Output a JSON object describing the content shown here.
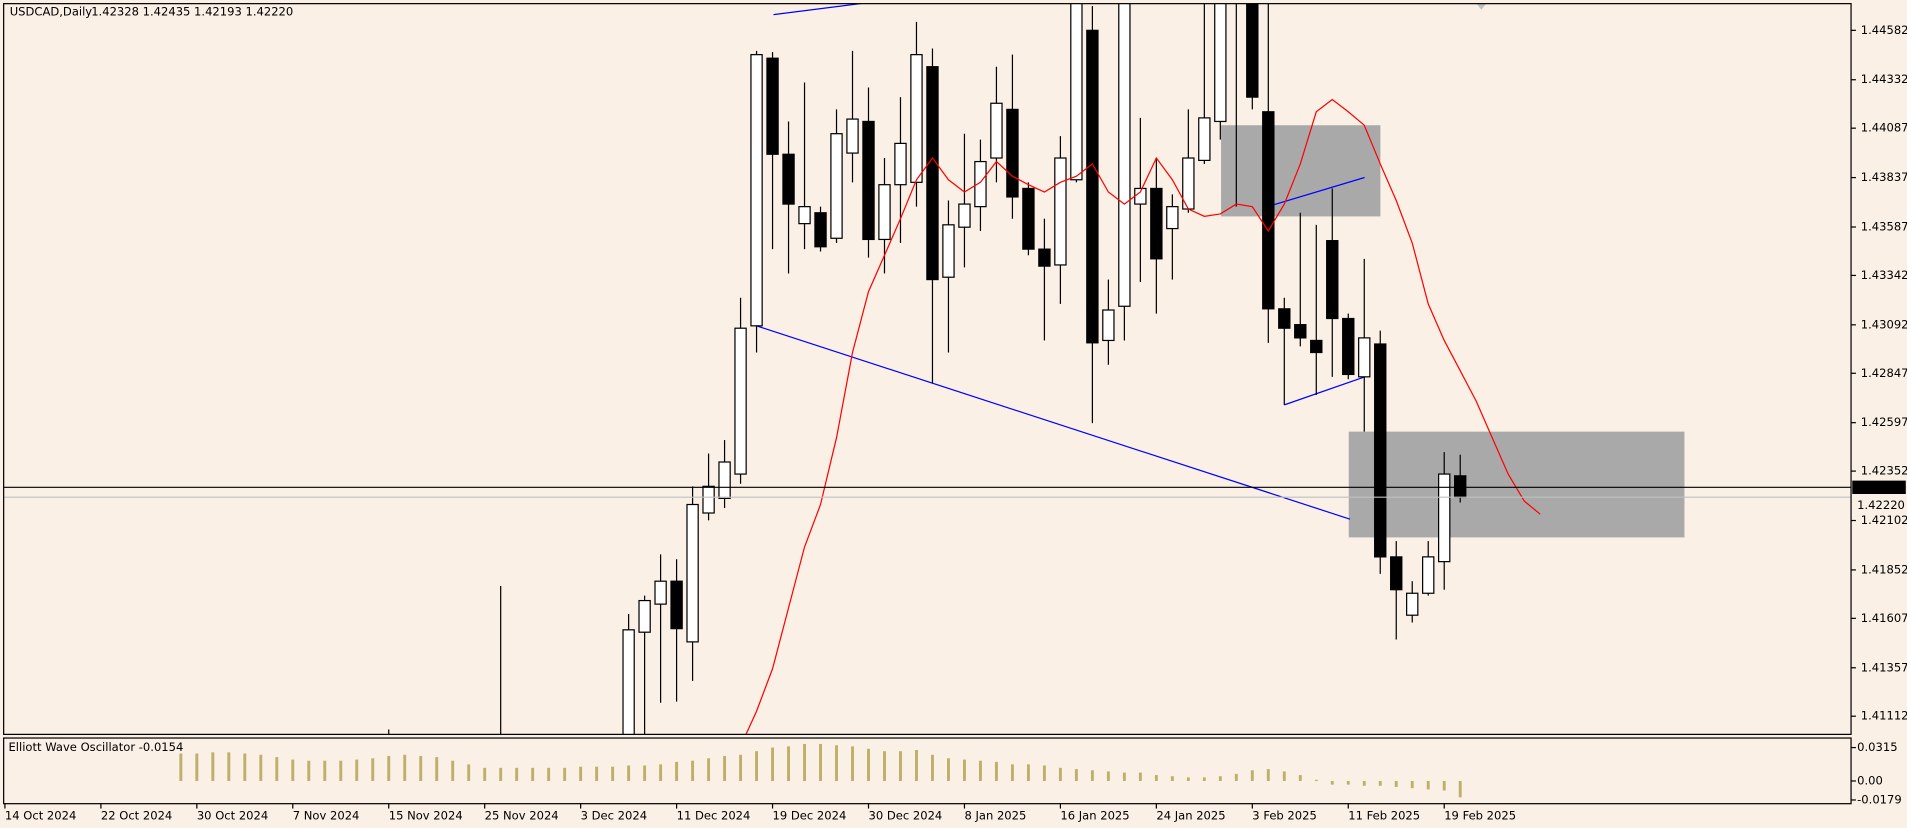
{
  "chart_data": [
    {
      "type": "candlestick",
      "title": "USDCAD,Daily",
      "ohlc_label": "1.42328 1.42435 1.42193 1.42220",
      "up_color": "#ffffff",
      "down_color": "#000000",
      "background": "#faf0e6",
      "x": [
        24,
        31,
        39,
        40,
        41,
        42,
        43,
        44,
        45,
        46,
        47,
        48,
        49,
        50,
        51,
        52,
        53,
        54,
        55,
        56,
        57,
        58,
        59,
        60,
        61,
        62,
        63,
        64,
        65,
        66,
        67,
        68,
        69,
        70,
        71,
        72,
        73,
        74,
        75,
        76,
        77,
        78,
        79,
        80,
        81,
        82,
        83,
        84,
        85,
        86,
        87,
        88,
        89,
        90,
        91
      ],
      "open": [
        1.408,
        1.409,
        1.40922,
        1.41537,
        1.41679,
        1.41795,
        1.41488,
        1.4214,
        1.42214,
        1.42337,
        1.43087,
        1.44441,
        1.43955,
        1.43604,
        1.43659,
        1.4353,
        1.43961,
        1.44121,
        1.43524,
        1.43801,
        1.43813,
        1.44398,
        1.43333,
        1.43586,
        1.4369,
        1.43936,
        1.44182,
        1.43782,
        1.43475,
        1.43395,
        1.43826,
        1.44582,
        1.43013,
        1.43186,
        1.43703,
        1.43782,
        1.43579,
        1.43678,
        1.43924,
        1.44121,
        1.44767,
        1.44767,
        1.4417,
        1.43173,
        1.43093,
        1.43013,
        1.43518,
        1.43124,
        1.42829,
        1.42995,
        1.41918,
        1.41623,
        1.41734,
        1.41894,
        1.42328
      ],
      "high": [
        1.41045,
        1.41771,
        1.41629,
        1.41722,
        1.41931,
        1.41906,
        1.42275,
        1.42441,
        1.42509,
        1.43229,
        1.44478,
        1.44472,
        1.44121,
        1.44318,
        1.4369,
        1.44182,
        1.44478,
        1.44293,
        1.43936,
        1.44244,
        1.44625,
        1.4449,
        1.43721,
        1.44059,
        1.44029,
        1.44398,
        1.44459,
        1.43813,
        1.43629,
        1.44047,
        1.44859,
        1.44705,
        1.43321,
        1.44798,
        1.44139,
        1.43936,
        1.43752,
        1.44182,
        1.44767,
        1.44798,
        1.44982,
        1.44798,
        1.44736,
        1.43229,
        1.43659,
        1.43598,
        1.43782,
        1.43149,
        1.43426,
        1.43063,
        1.41998,
        1.41795,
        1.41998,
        1.42448,
        1.42435
      ],
      "low": [
        1.407,
        1.408,
        1.40799,
        1.40983,
        1.4118,
        1.41186,
        1.41291,
        1.42103,
        1.42165,
        1.42288,
        1.42952,
        1.43475,
        1.43352,
        1.43475,
        1.43463,
        1.43506,
        1.43813,
        1.43432,
        1.43352,
        1.43506,
        1.4369,
        1.42798,
        1.42952,
        1.43383,
        1.43567,
        1.43813,
        1.43629,
        1.43444,
        1.43013,
        1.43198,
        1.43813,
        1.42595,
        1.4289,
        1.43013,
        1.43309,
        1.43149,
        1.43321,
        1.43659,
        1.43906,
        1.44029,
        1.4369,
        1.44182,
        1.43001,
        1.42687,
        1.42983,
        1.42737,
        1.42829,
        1.42817,
        1.42552,
        1.41832,
        1.415,
        1.41586,
        1.41722,
        1.41752,
        1.42193
      ],
      "close": [
        1.4078,
        1.4085,
        1.41549,
        1.41697,
        1.41795,
        1.41555,
        1.42183,
        1.42275,
        1.42398,
        1.43075,
        1.44459,
        1.43955,
        1.43703,
        1.4369,
        1.43487,
        1.44059,
        1.44133,
        1.43524,
        1.43801,
        1.4401,
        1.44459,
        1.43321,
        1.43598,
        1.43703,
        1.43918,
        1.44213,
        1.43739,
        1.43475,
        1.43389,
        1.43936,
        1.44798,
        1.43001,
        1.43167,
        1.44767,
        1.43782,
        1.43426,
        1.4369,
        1.43936,
        1.44139,
        1.44767,
        1.44921,
        1.44244,
        1.43173,
        1.43075,
        1.43026,
        1.42952,
        1.43124,
        1.42841,
        1.43026,
        1.41918,
        1.41752,
        1.41734,
        1.41918,
        1.42337,
        1.4222
      ],
      "lines": [
        {
          "color": "#ff0000",
          "x": [
            46,
            47,
            48,
            49,
            50,
            51,
            52,
            53,
            54,
            55,
            56,
            57,
            58,
            59,
            60,
            61,
            62,
            63,
            64,
            65,
            66,
            67,
            68,
            69,
            70,
            71,
            72,
            73,
            74,
            75,
            76,
            77,
            78,
            79,
            80,
            81,
            82,
            83,
            84,
            85,
            86,
            87,
            88,
            89,
            90,
            91,
            92,
            93,
            94,
            95,
            96
          ],
          "values": [
            1.4096,
            1.41137,
            1.41352,
            1.4166,
            1.41968,
            1.42183,
            1.42521,
            1.42952,
            1.4326,
            1.43444,
            1.43629,
            1.43826,
            1.43936,
            1.43826,
            1.43764,
            1.43813,
            1.43918,
            1.43844,
            1.43801,
            1.43764,
            1.43813,
            1.43844,
            1.43906,
            1.43764,
            1.43703,
            1.43764,
            1.43936,
            1.43826,
            1.43678,
            1.43641,
            1.43653,
            1.43703,
            1.4369,
            1.43567,
            1.43703,
            1.43906,
            1.4417,
            1.44232,
            1.4417,
            1.44102,
            1.43906,
            1.43721,
            1.43506,
            1.43198,
            1.43013,
            1.4286,
            1.42706,
            1.42521,
            1.42337,
            1.42201,
            1.42134
          ]
        }
      ],
      "price_lines": [
        {
          "value": 1.4227,
          "label": "1.42270",
          "color": "#000000"
        },
        {
          "value": 1.4222,
          "label": "1.42220",
          "color": "#c0c0c0"
        }
      ],
      "xlim": [
        -0.08,
        115.44
      ],
      "xticks": [
        {
          "value": 0,
          "label": "14 Oct 2024"
        },
        {
          "value": 6,
          "label": "22 Oct 2024"
        },
        {
          "value": 12,
          "label": "30 Oct 2024"
        },
        {
          "value": 18,
          "label": "7 Nov 2024"
        },
        {
          "value": 24,
          "label": "15 Nov 2024"
        },
        {
          "value": 30,
          "label": "25 Nov 2024"
        },
        {
          "value": 36,
          "label": "3 Dec 2024"
        },
        {
          "value": 42,
          "label": "11 Dec 2024"
        },
        {
          "value": 48,
          "label": "19 Dec 2024"
        },
        {
          "value": 54,
          "label": "30 Dec 2024"
        },
        {
          "value": 60,
          "label": "8 Jan 2025"
        },
        {
          "value": 66,
          "label": "16 Jan 2025"
        },
        {
          "value": 72,
          "label": "24 Jan 2025"
        },
        {
          "value": 78,
          "label": "3 Feb 2025"
        },
        {
          "value": 84,
          "label": "11 Feb 2025"
        },
        {
          "value": 90,
          "label": "19 Feb 2025"
        }
      ],
      "ylim": [
        1.4102,
        1.44717
      ],
      "yticks": [
        1.44582,
        1.44332,
        1.44087,
        1.43837,
        1.43587,
        1.43342,
        1.43092,
        1.42847,
        1.42597,
        1.42352,
        1.42102,
        1.41852,
        1.41607,
        1.41357,
        1.41112
      ]
    },
    {
      "type": "bar",
      "title": "Elliott Wave Oscillator -0.0154",
      "color": "#bdb06b",
      "x": [
        11,
        12,
        13,
        14,
        15,
        16,
        17,
        18,
        19,
        20,
        21,
        22,
        23,
        24,
        25,
        26,
        27,
        28,
        29,
        30,
        31,
        32,
        33,
        34,
        35,
        36,
        37,
        38,
        39,
        40,
        41,
        42,
        43,
        44,
        45,
        46,
        47,
        48,
        49,
        50,
        51,
        52,
        53,
        54,
        55,
        56,
        57,
        58,
        59,
        60,
        61,
        62,
        63,
        64,
        65,
        66,
        67,
        68,
        69,
        70,
        71,
        72,
        73,
        74,
        75,
        76,
        77,
        78,
        79,
        80,
        81,
        82,
        83,
        84,
        85,
        86,
        87,
        88,
        89,
        90,
        91
      ],
      "values": [
        0.0259,
        0.0259,
        0.027,
        0.027,
        0.0259,
        0.0247,
        0.0225,
        0.0202,
        0.0191,
        0.0191,
        0.0191,
        0.0202,
        0.0214,
        0.0236,
        0.0247,
        0.0236,
        0.0225,
        0.0191,
        0.0157,
        0.0124,
        0.0124,
        0.0124,
        0.0124,
        0.0124,
        0.0124,
        0.0135,
        0.0135,
        0.0135,
        0.0146,
        0.0146,
        0.0157,
        0.018,
        0.0191,
        0.0214,
        0.0236,
        0.0247,
        0.0281,
        0.0315,
        0.0326,
        0.0349,
        0.0349,
        0.0337,
        0.0326,
        0.0304,
        0.0281,
        0.0281,
        0.0292,
        0.0247,
        0.0214,
        0.0202,
        0.0191,
        0.018,
        0.0157,
        0.0157,
        0.0146,
        0.0124,
        0.0112,
        0.0101,
        0.009,
        0.0079,
        0.0079,
        0.0056,
        0.0045,
        0.0034,
        0.0034,
        0.0045,
        0.0067,
        0.0101,
        0.0112,
        0.009,
        0.0056,
        0.0011,
        -0.0034,
        -0.0034,
        -0.0045,
        -0.0045,
        -0.0056,
        -0.0067,
        -0.0079,
        -0.009,
        -0.0154
      ],
      "ylim": [
        -0.0214,
        0.0405
      ],
      "yticks": [
        0.0315,
        {
          "value": 0,
          "label": "0.00"
        },
        -0.0179
      ]
    }
  ]
}
